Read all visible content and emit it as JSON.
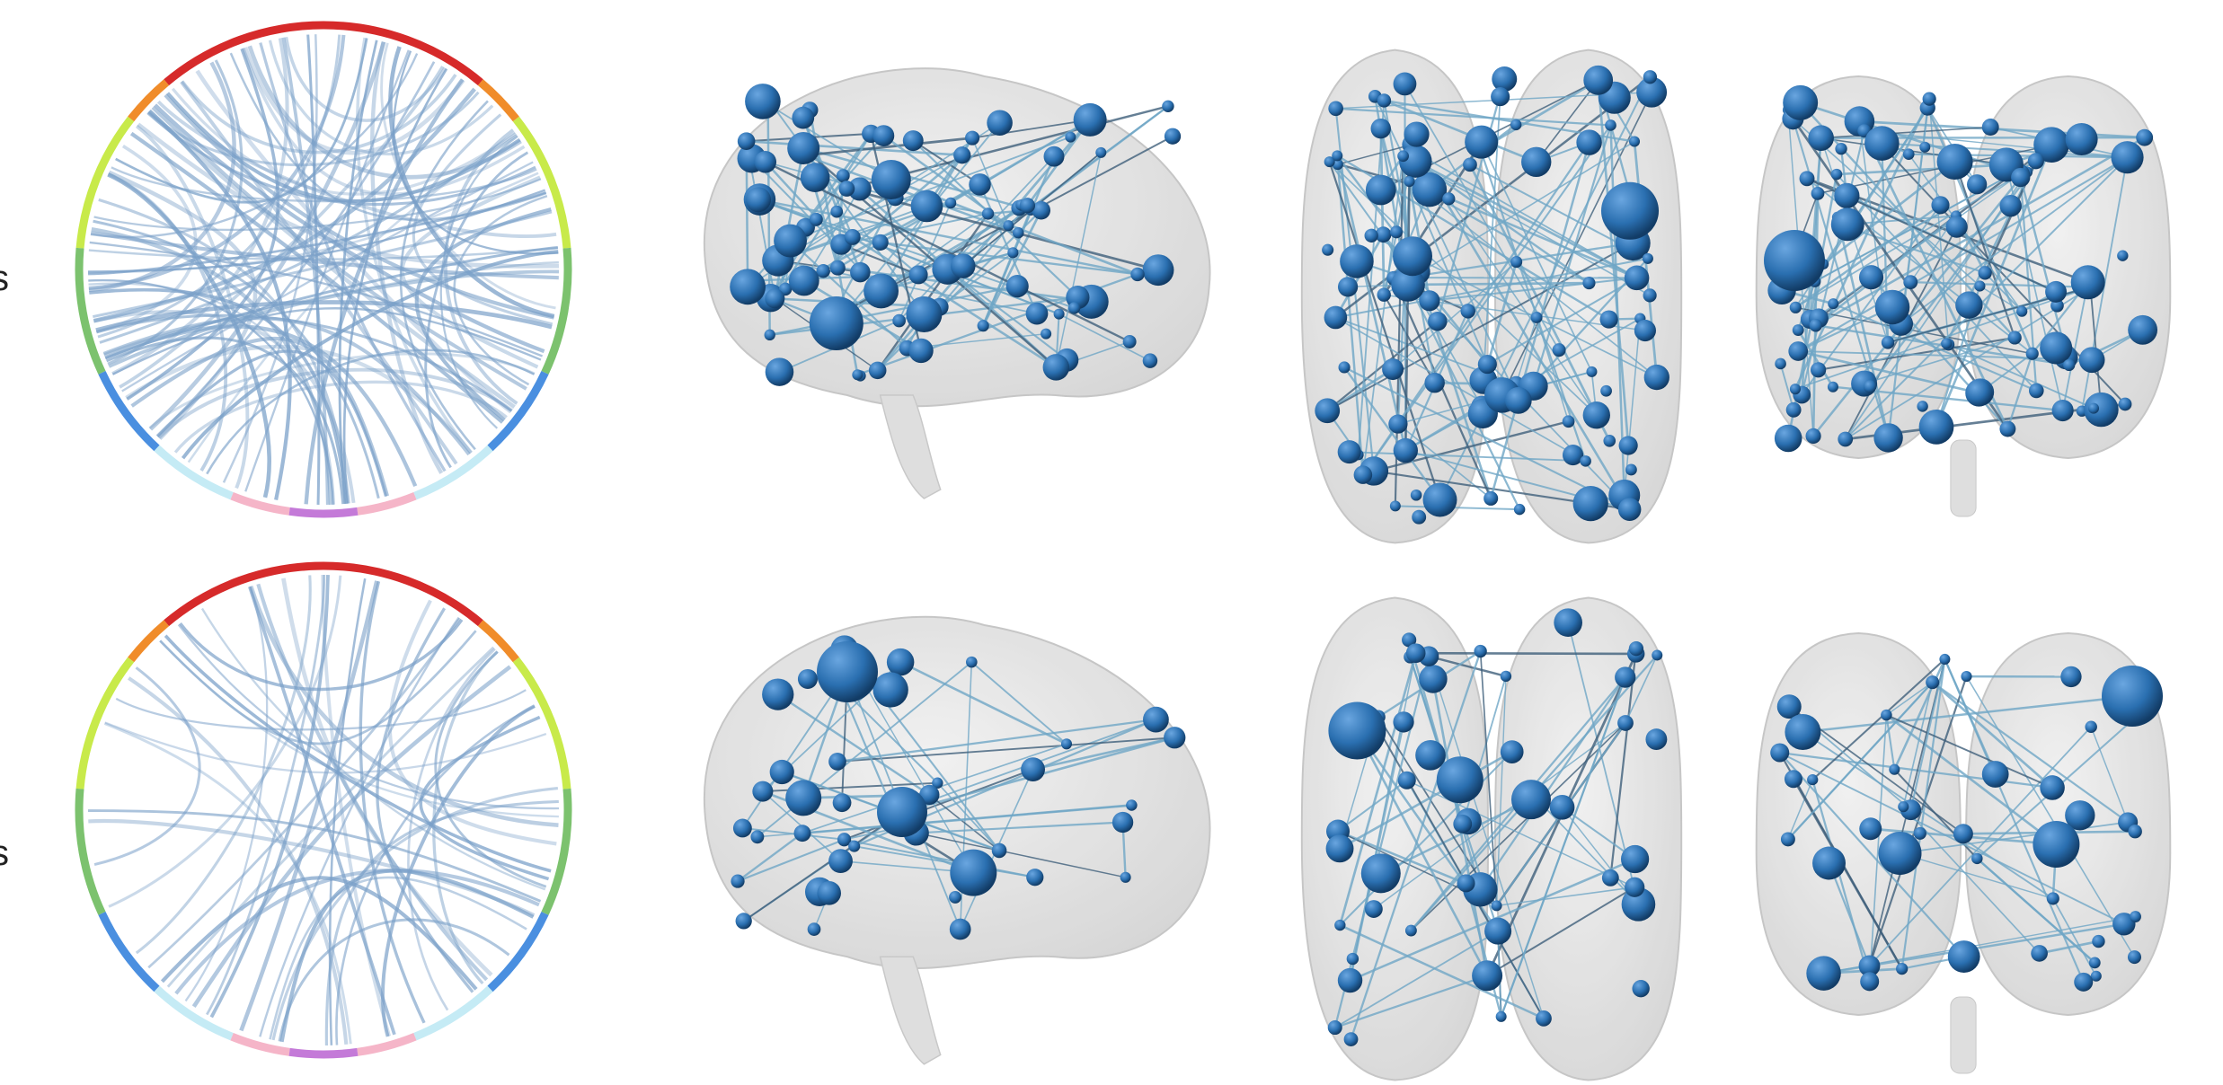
{
  "figure": {
    "rows": [
      {
        "row_mark": "s"
      },
      {
        "row_mark": "s"
      }
    ]
  },
  "colors": {
    "ring_segments": [
      "#d62a2a",
      "#f08c2a",
      "#c8ea4a",
      "#7cc26e",
      "#4a8fe0",
      "#c5ebf5",
      "#f5b5c8",
      "#c47ad8"
    ],
    "chord": "#7aa0c8",
    "node": "#2a6fb0",
    "brain": "#cfcfcf",
    "edge": "#6fa6c6"
  },
  "views": [
    "sagittal",
    "axial",
    "coronal"
  ]
}
